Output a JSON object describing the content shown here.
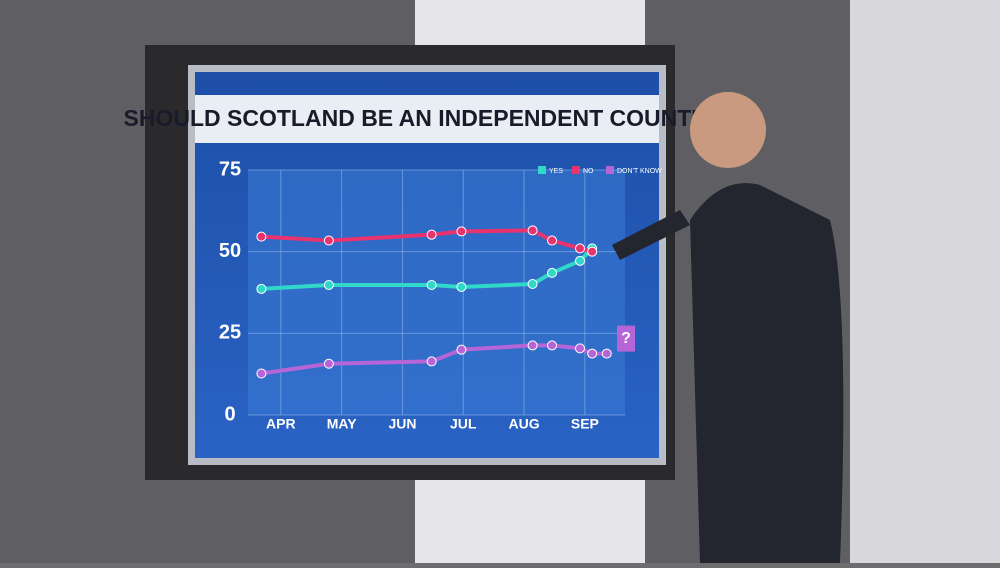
{
  "chart_data": {
    "type": "line",
    "title": "SHOULD SCOTLAND BE AN INDEPENDENT COUNTRY?",
    "x": [
      3.68,
      4.79,
      6.48,
      6.97,
      8.14,
      8.46,
      8.92,
      9.12,
      9.36
    ],
    "xlim": [
      3.46,
      9.66
    ],
    "xticks": [
      {
        "value": 4,
        "label": "APR"
      },
      {
        "value": 5,
        "label": "MAY"
      },
      {
        "value": 6,
        "label": "JUN"
      },
      {
        "value": 7,
        "label": "JUL"
      },
      {
        "value": 8,
        "label": "AUG"
      },
      {
        "value": 9,
        "label": "SEP"
      }
    ],
    "ylim": [
      0,
      75
    ],
    "yticks": [
      0,
      25,
      50,
      75
    ],
    "series": [
      {
        "name": "YES",
        "color": "#2fd8c8",
        "values": [
          38.6,
          39.8,
          39.8,
          39.2,
          40.1,
          43.5,
          47.2,
          51,
          null
        ]
      },
      {
        "name": "NO",
        "color": "#e8336e",
        "values": [
          54.6,
          53.4,
          55.2,
          56.2,
          56.5,
          53.4,
          51,
          50,
          null
        ]
      },
      {
        "name": "DON'T KNOW",
        "color": "#b565d8",
        "values": [
          12.7,
          15.7,
          16.4,
          20,
          21.3,
          21.3,
          20.4,
          18.8,
          18.8
        ]
      }
    ],
    "annotations": [
      "?"
    ],
    "legend": "upper right",
    "grid": true
  }
}
